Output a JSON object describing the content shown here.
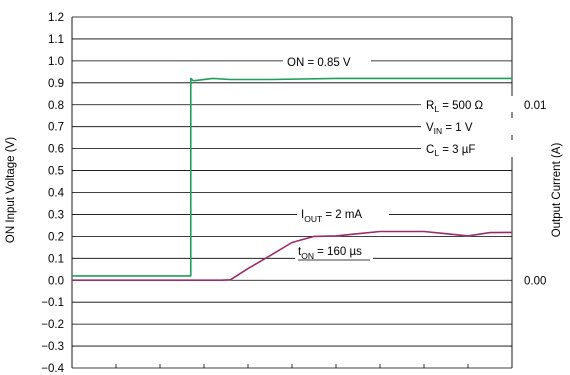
{
  "chart_data": {
    "type": "line",
    "title": "",
    "xlabel": "",
    "ylabel_left": "ON Input Voltage (V)",
    "ylabel_right": "Output Current (A)",
    "ylim_left": [
      -0.4,
      1.2
    ],
    "yticks_left": [
      "1.2",
      "1.1",
      "1.0",
      "0.9",
      "0.8",
      "0.7",
      "0.6",
      "0.5",
      "0.4",
      "0.3",
      "0.2",
      "0.1",
      "0.0",
      "−0.1",
      "−0.2",
      "−0.3",
      "−0.4"
    ],
    "yticks_right": [
      "0.01",
      "0.00"
    ],
    "x_divisions": 10,
    "grid": true,
    "colors": {
      "on_voltage": "#1f9e5c",
      "output_current": "#9b2a6e",
      "grid": "#000000"
    },
    "series": [
      {
        "key": "on_voltage",
        "x": [
          0,
          2.7,
          2.7,
          2.75,
          2.8,
          3.2,
          3.6,
          4.5,
          6,
          7.5,
          10
        ],
        "values": [
          0.02,
          0.02,
          0.92,
          0.91,
          0.91,
          0.92,
          0.915,
          0.915,
          0.92,
          0.92,
          0.92
        ]
      },
      {
        "key": "output_current",
        "x": [
          0,
          3.0,
          3.4,
          3.6,
          4.0,
          4.5,
          5.0,
          5.5,
          6.0,
          6.5,
          7.0,
          7.5,
          8.0,
          8.5,
          9.0,
          9.5,
          10
        ],
        "values": [
          0.0,
          0.0,
          0.0,
          0.002,
          0.053,
          0.112,
          0.172,
          0.2,
          0.202,
          0.212,
          0.222,
          0.222,
          0.222,
          0.212,
          0.202,
          0.217,
          0.218
        ]
      }
    ],
    "annotations": {
      "on_label": "ON = 0.85 V",
      "rl_main": "R",
      "rl_sub": "L",
      "rl_rest": " = 500 Ω",
      "vin_main": "V",
      "vin_sub": "IN",
      "vin_rest": " = 1 V",
      "cl_main": "C",
      "cl_sub": "L",
      "cl_rest": " = 3 µF",
      "iout_main": "I",
      "iout_sub": "OUT",
      "iout_rest": " = 2 mA",
      "ton_main": "t",
      "ton_sub": "ON",
      "ton_rest": " = 160 µs"
    }
  }
}
